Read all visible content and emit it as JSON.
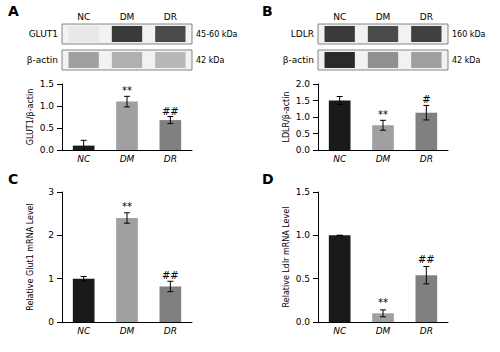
{
  "chart_data": [
    {
      "type": "blot",
      "title": "A",
      "categories": [
        "NC",
        "DM",
        "DR"
      ],
      "series": [
        {
          "name": "GLUT1",
          "note": "45-60 kDa",
          "colors": [
            "#e8e8e8",
            "#3a3a3a",
            "#4a4a4a"
          ]
        },
        {
          "name": "β-actin",
          "note": "42 kDa",
          "colors": [
            "#a0a0a0",
            "#b0b0b0",
            "#b8b8b8"
          ]
        }
      ]
    },
    {
      "type": "bar",
      "categories": [
        "NC",
        "DM",
        "DR"
      ],
      "values": [
        0.1,
        1.1,
        0.68
      ],
      "errors": [
        0.12,
        0.12,
        0.08
      ],
      "colors": [
        "#1a1a1a",
        "#a0a0a0",
        "#808080"
      ],
      "ylabel": "GLUT1/β-actin",
      "ylim": [
        0,
        1.5
      ],
      "yticks": [
        {
          "value": 0,
          "label": "0.0"
        },
        0.5,
        {
          "value": 1,
          "label": "1.0"
        },
        1.5
      ],
      "grid": false,
      "annotations": [
        {
          "text": "**",
          "x": "DM",
          "y": 1.23
        },
        {
          "text": "##",
          "x": "DR",
          "y": 0.77
        }
      ]
    },
    {
      "type": "blot",
      "title": "B",
      "categories": [
        "NC",
        "DM",
        "DR"
      ],
      "series": [
        {
          "name": "LDLR",
          "note": "160 kDa",
          "colors": [
            "#3a3a3a",
            "#4a4a4a",
            "#404040"
          ]
        },
        {
          "name": "β-actin",
          "note": "42 kDa",
          "colors": [
            "#2a2a2a",
            "#909090",
            "#a0a0a0"
          ]
        }
      ]
    },
    {
      "type": "bar",
      "categories": [
        "NC",
        "DM",
        "DR"
      ],
      "values": [
        1.5,
        0.75,
        1.13
      ],
      "errors": [
        0.12,
        0.15,
        0.22
      ],
      "colors": [
        "#1a1a1a",
        "#a0a0a0",
        "#808080"
      ],
      "ylabel": "LDLR/β-actin",
      "ylim": [
        0,
        2.0
      ],
      "yticks": [
        {
          "value": 0,
          "label": "0.0"
        },
        0.5,
        {
          "value": 1,
          "label": "1.0"
        },
        1.5,
        {
          "value": 2,
          "label": "2.0"
        }
      ],
      "grid": false,
      "annotations": [
        {
          "text": "**",
          "x": "DM",
          "y": 0.93
        },
        {
          "text": "#",
          "x": "DR",
          "y": 1.38
        }
      ]
    },
    {
      "type": "bar",
      "title": "C",
      "categories": [
        "NC",
        "DM",
        "DR"
      ],
      "values": [
        1.0,
        2.4,
        0.82
      ],
      "errors": [
        0.05,
        0.12,
        0.12
      ],
      "colors": [
        "#1a1a1a",
        "#a0a0a0",
        "#808080"
      ],
      "ylabel": "Relative Glut1 mRNA Level",
      "ylim": [
        0,
        3.0
      ],
      "yticks": [
        0,
        1,
        2,
        3
      ],
      "grid": false,
      "annotations": [
        {
          "text": "**",
          "x": "DM",
          "y": 2.55
        },
        {
          "text": "##",
          "x": "DR",
          "y": 0.96
        }
      ]
    },
    {
      "type": "bar",
      "title": "D",
      "categories": [
        "NC",
        "DM",
        "DR"
      ],
      "values": [
        1.0,
        0.1,
        0.54
      ],
      "errors": [
        0.0,
        0.04,
        0.1
      ],
      "colors": [
        "#1a1a1a",
        "#a0a0a0",
        "#808080"
      ],
      "ylabel": "Relative Ldlr mRNA Level",
      "ylim": [
        0,
        1.5
      ],
      "yticks": [
        {
          "value": 0,
          "label": "0.0"
        },
        0.5,
        {
          "value": 1,
          "label": "1.0"
        },
        1.5
      ],
      "grid": false,
      "annotations": [
        {
          "text": "**",
          "x": "DM",
          "y": 0.17
        },
        {
          "text": "##",
          "x": "DR",
          "y": 0.66
        }
      ]
    }
  ]
}
